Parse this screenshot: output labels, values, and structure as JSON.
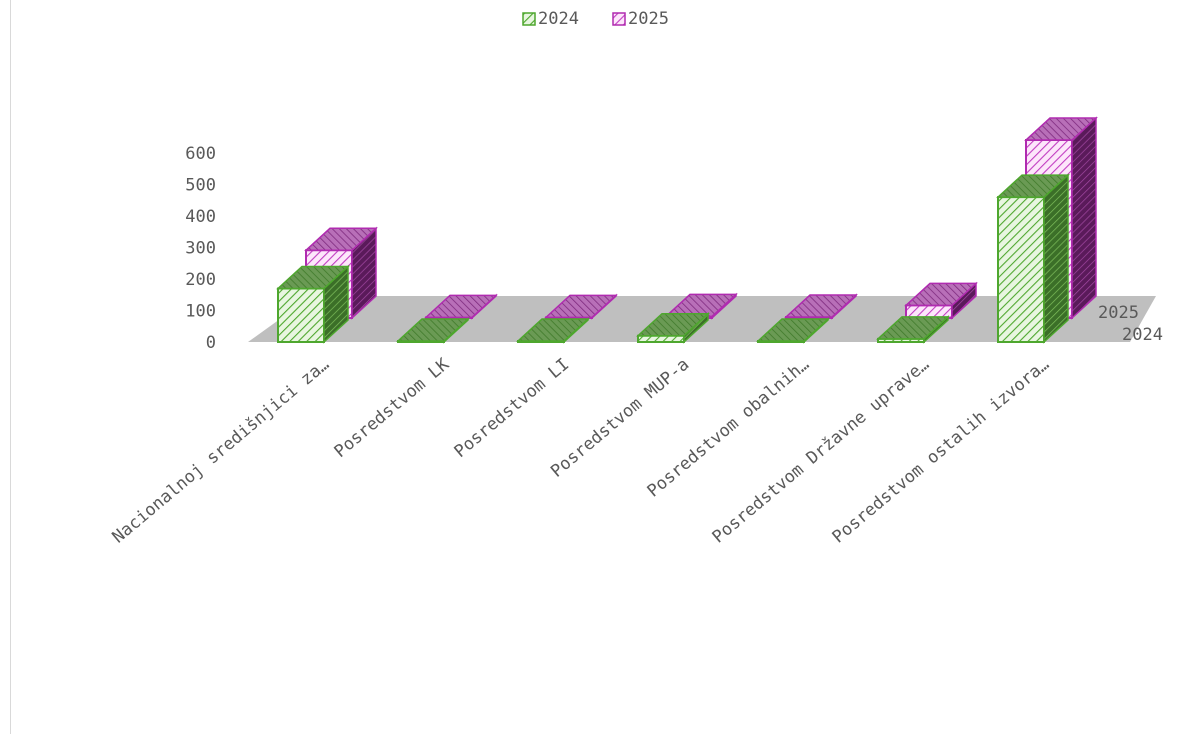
{
  "chart_data": {
    "type": "bar",
    "subtype": "3d-column",
    "categories": [
      "Nacionalnoj središnjici za…",
      "Posredstvom LK",
      "Posredstvom LI",
      "Posredstvom MUP-a",
      "Posredstvom obalnih…",
      "Posredstvom Državne uprave…",
      "Posredstvom ostalih izvora…"
    ],
    "series": [
      {
        "name": "2024",
        "color": "#4ea72e",
        "values": [
          170,
          3,
          3,
          20,
          3,
          10,
          460
        ]
      },
      {
        "name": "2025",
        "color": "#b02bb0",
        "values": [
          215,
          2,
          2,
          5,
          3,
          40,
          565
        ]
      }
    ],
    "ylim": [
      0,
      600
    ],
    "yticks": [
      "0",
      "100",
      "200",
      "300",
      "400",
      "500",
      "600"
    ],
    "depth_labels": [
      "2025",
      "2024"
    ],
    "legend_position": "top",
    "grid": false,
    "floor_color": "#bfbfbf"
  }
}
